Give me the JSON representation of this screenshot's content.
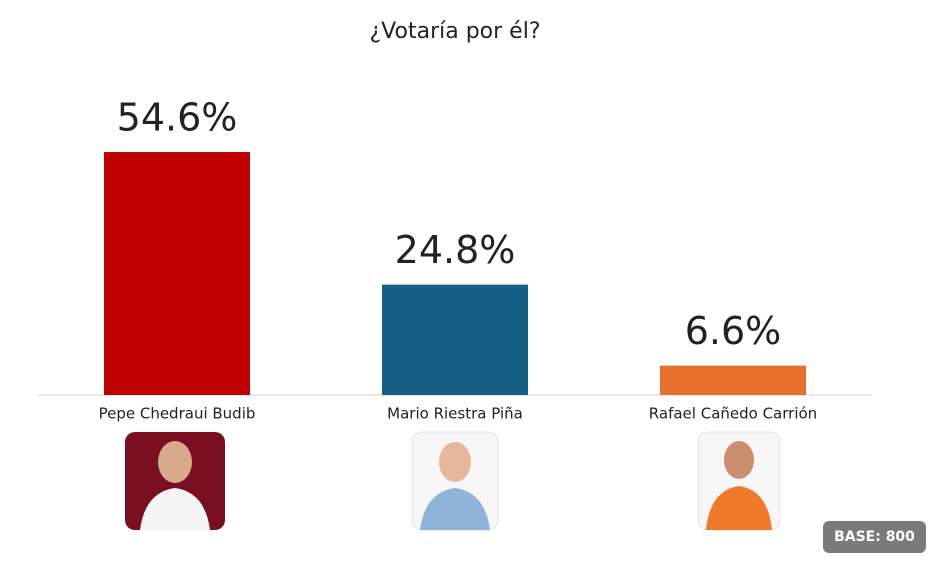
{
  "chart_data": {
    "type": "bar",
    "title": "¿Votaría por él?",
    "categories": [
      "Pepe Chedraui Budib",
      "Mario Riestra Piña",
      "Rafael Cañedo Carrión"
    ],
    "values": [
      54.6,
      24.8,
      6.6
    ],
    "value_labels": [
      "54.6%",
      "24.8%",
      "6.6%"
    ],
    "colors": [
      "#c00000",
      "#165e84",
      "#e8702f"
    ],
    "note": "BASE: 800"
  }
}
